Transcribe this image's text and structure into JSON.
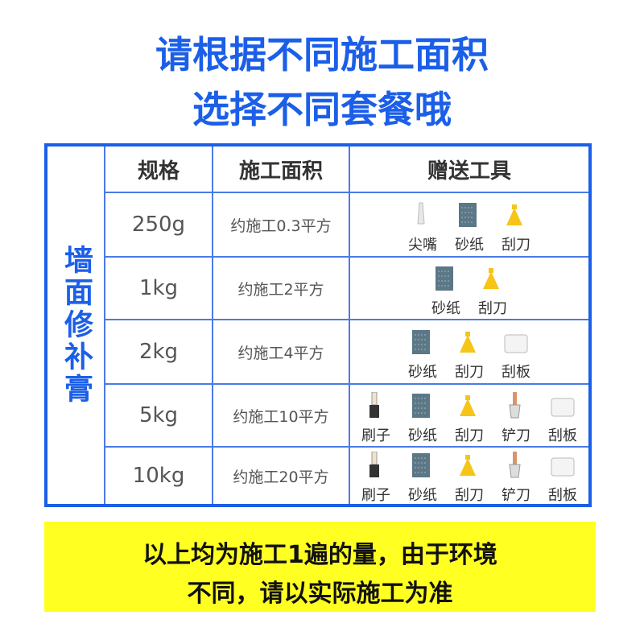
{
  "header": {
    "lines": [
      "请根据不同施工面积",
      "选择不同套餐哦"
    ]
  },
  "table": {
    "side_label": "墙面修补膏",
    "columns": [
      "规格",
      "施工面积",
      "赠送工具"
    ],
    "rows": [
      {
        "spec": "250g",
        "area": "约施工0.3平方",
        "tools": [
          "尖嘴",
          "砂纸",
          "刮刀"
        ]
      },
      {
        "spec": "1kg",
        "area": "约施工2平方",
        "tools": [
          "砂纸",
          "刮刀"
        ]
      },
      {
        "spec": "2kg",
        "area": "约施工4平方",
        "tools": [
          "砂纸",
          "刮刀",
          "刮板"
        ]
      },
      {
        "spec": "5kg",
        "area": "约施工10平方",
        "tools": [
          "刷子",
          "砂纸",
          "刮刀",
          "铲刀",
          "刮板"
        ]
      },
      {
        "spec": "10kg",
        "area": "约施工20平方",
        "tools": [
          "刷子",
          "砂纸",
          "刮刀",
          "铲刀",
          "刮板"
        ]
      }
    ]
  },
  "footer": {
    "lines": [
      "以上均为施工1遍的量，由于环境",
      "不同，请以实际施工为准"
    ]
  }
}
